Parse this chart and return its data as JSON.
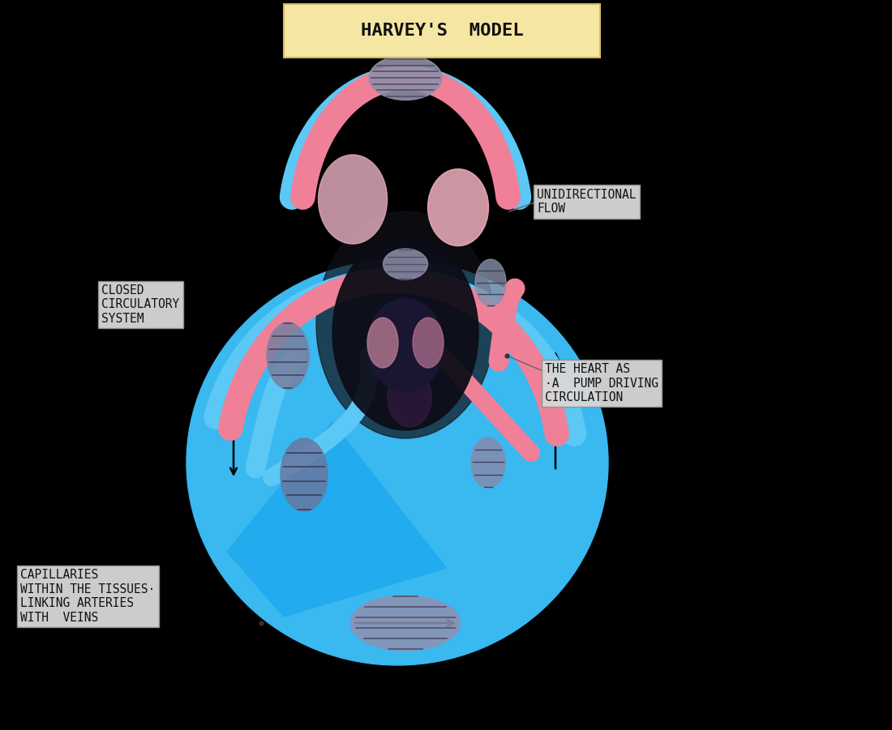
{
  "background_color": "#000000",
  "title": "HARVEY'S  MODEL",
  "title_box_color": "#f5e6a3",
  "title_fontsize": 16,
  "labels": {
    "unidirectional_flow": "UNIDIRECTIONAL\nFLOW",
    "closed_circulatory": "CLOSED\nCIRCULATORY\nSYSTEM",
    "heart_pump": "THE HEART AS\n·A  PUMP DRIVING\nCIRCULATION",
    "capillaries": "CAPILLARIES\nWITHIN THE TISSUES·\nLINKING ARTERIES\nWITH  VEINS"
  },
  "blue_color": "#5bc8f5",
  "pink_color": "#f08098",
  "blue_bg_color": "#3ab0e8",
  "dark_bg": "#1a1020",
  "loop_lw": 22,
  "inner_lw": 14
}
